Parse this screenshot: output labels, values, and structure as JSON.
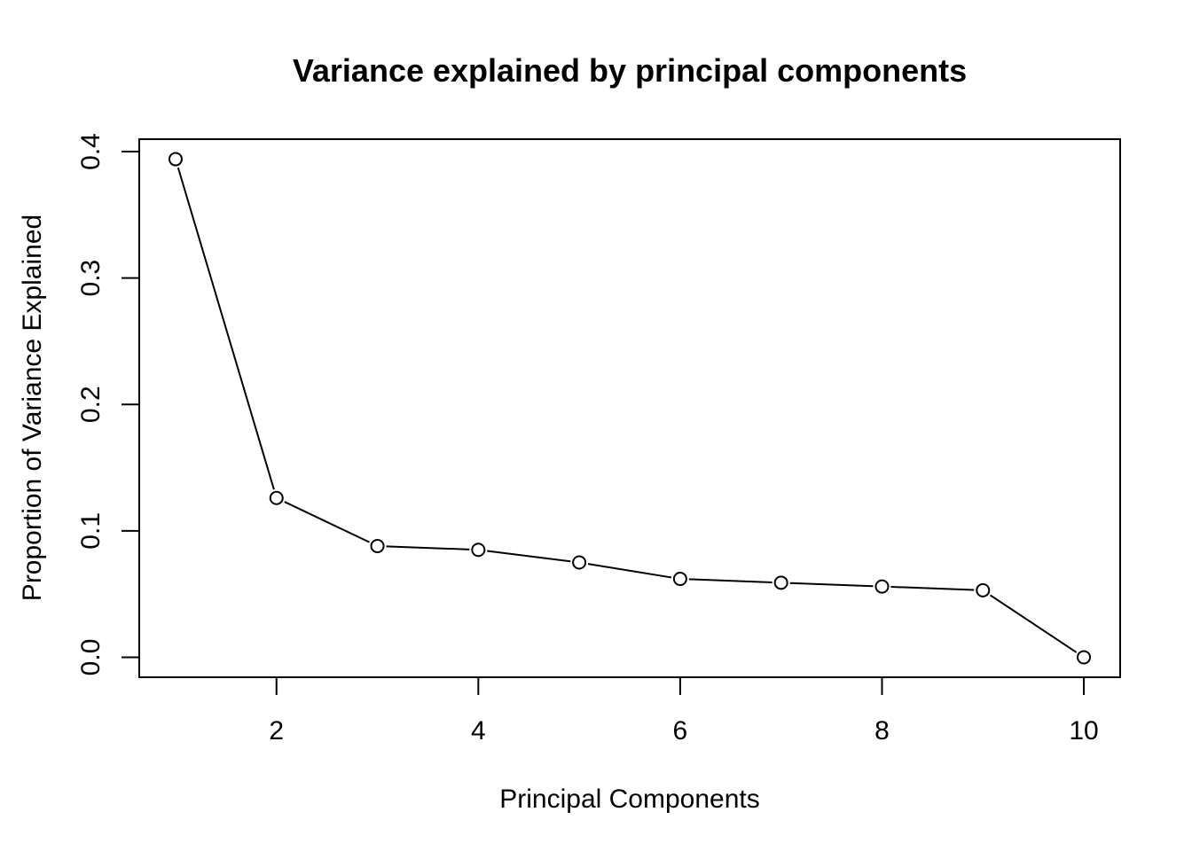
{
  "chart_data": {
    "type": "line",
    "title": "Variance explained by principal components",
    "xlabel": "Principal Components",
    "ylabel": "Proportion of Variance Explained",
    "x": [
      1,
      2,
      3,
      4,
      5,
      6,
      7,
      8,
      9,
      10
    ],
    "values": [
      0.394,
      0.126,
      0.088,
      0.085,
      0.075,
      0.062,
      0.059,
      0.056,
      0.053,
      0.0
    ],
    "xlim": [
      0.64,
      10.36
    ],
    "ylim": [
      -0.0158,
      0.4098
    ],
    "xticks": [
      2,
      4,
      6,
      8,
      10
    ],
    "xtick_labels": [
      "2",
      "4",
      "6",
      "8",
      "10"
    ],
    "yticks": [
      0.0,
      0.1,
      0.2,
      0.3,
      0.4
    ],
    "ytick_labels": [
      "0.0",
      "0.1",
      "0.2",
      "0.3",
      "0.4"
    ],
    "marker": "open-circle",
    "grid": false,
    "legend": "none",
    "colors": {
      "line": "#000000",
      "marker_fill": "#ffffff"
    }
  }
}
